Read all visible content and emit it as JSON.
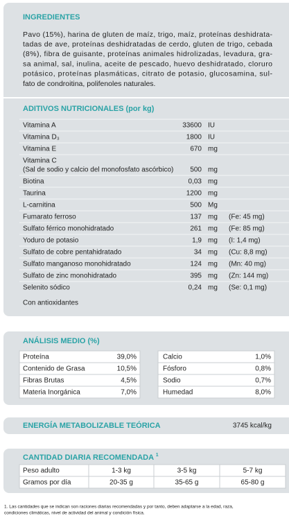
{
  "ingredients": {
    "title": "INGREDIENTES",
    "lines": [
      "Pavo (15%), harina de gluten de maíz, trigo, maíz, proteínas deshidrata-",
      "tadas de ave, proteínas deshidratadas de cerdo, gluten de trigo, cebada",
      "(8%), fibra de guisante, proteínas animales hidrolizadas, levadura, gra-",
      "sa animal, sal, inulina, aceite de pescado, huevo deshidratado, cloruro",
      "potásico, proteínas plasmáticas, citrato de potasio, glucosamina, sul-",
      "fato de condroitina, polifenoles naturales."
    ]
  },
  "additives": {
    "title": "ADITIVOS NUTRICIONALES (por kg)",
    "rows": [
      {
        "name": "Vitamina A",
        "value": "33600",
        "unit": "IU"
      },
      {
        "name": "Vitamina D₃",
        "value": "1800",
        "unit": "IU"
      },
      {
        "name": "Vitamina E",
        "value": "670",
        "unit": "mg"
      },
      {
        "name": "Vitamina C",
        "detail": "(Sal de sodio y calcio del monofosfato ascórbico)",
        "value": "500",
        "unit": "mg"
      },
      {
        "name": "Biotina",
        "value": "0,03",
        "unit": "mg"
      },
      {
        "name": "Taurina",
        "value": "1200",
        "unit": "mg"
      },
      {
        "name": "L-carnitina",
        "value": "500",
        "unit": "Mg"
      },
      {
        "name": "Fumarato ferroso",
        "value": "137",
        "unit": "mg",
        "note": "(Fe: 45 mg)"
      },
      {
        "name": "Sulfato férrico monohidratado",
        "value": "261",
        "unit": "mg",
        "note": "(Fe: 85 mg)"
      },
      {
        "name": "Yoduro de potasio",
        "value": "1,9",
        "unit": "mg",
        "note": "(I: 1,4 mg)"
      },
      {
        "name": "Sulfato de cobre pentahidratado",
        "value": "34",
        "unit": "mg",
        "note": "(Cu: 8,8 mg)"
      },
      {
        "name": "Sulfato manganoso monohidratado",
        "value": "124",
        "unit": "mg",
        "note": "(Mn: 40 mg)"
      },
      {
        "name": "Sulfato de zinc monohidratado",
        "value": "395",
        "unit": "mg",
        "note": "(Zn: 144 mg)"
      },
      {
        "name": "Selenito sódico",
        "value": "0,24",
        "unit": "mg",
        "note": "(Se: 0,1 mg)"
      }
    ],
    "footer": "Con antioxidantes"
  },
  "analysis": {
    "title": "ANÁLISIS MEDIO (%)",
    "rows": [
      [
        "Proteína",
        "39,0%",
        "Calcio",
        "1,0%"
      ],
      [
        "Contenido de Grasa",
        "10,5%",
        "Fósforo",
        "0,8%"
      ],
      [
        "Fibras Brutas",
        "4,5%",
        "Sodio",
        "0,7%"
      ],
      [
        "Materia Inorgánica",
        "7,0%",
        "Humedad",
        "8,0%"
      ]
    ]
  },
  "energy": {
    "title": "ENERGÍA METABOLIZABLE TEÓRICA",
    "value": "3745 kcal/kg"
  },
  "daily": {
    "title": "CANTIDAD DIARIA RECOMENDADA",
    "title_mark": "1",
    "rows": [
      [
        "Peso adulto",
        "1-3 kg",
        "3-5 kg",
        "5-7 kg"
      ],
      [
        "Gramos por día",
        "20-35 g",
        "35-65 g",
        "65-80 g"
      ]
    ]
  },
  "footnote": [
    "1. Las cantidades que se indican son raciones diarias recomendadas y por tanto, deben adaptarse a la edad, raza,",
    "condiciones climáticas, nivel de actividad del animal y condición física."
  ]
}
